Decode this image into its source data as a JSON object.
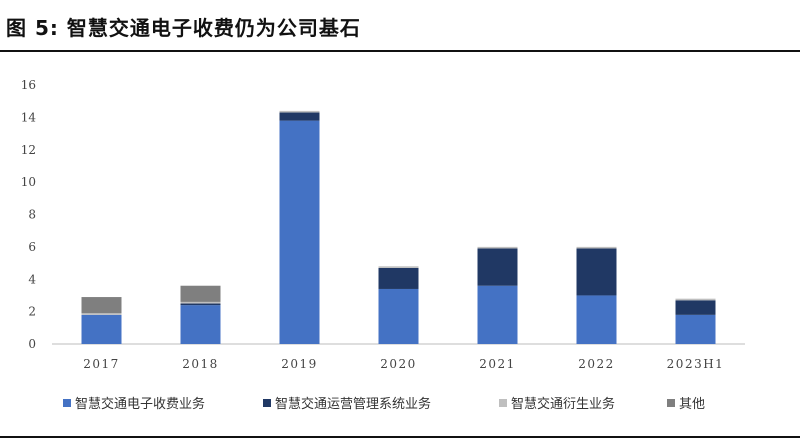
{
  "figure_title": "图 5: 智慧交通电子收费仍为公司基石",
  "chart_data": {
    "type": "bar",
    "stacked": true,
    "categories": [
      "2017",
      "2018",
      "2019",
      "2020",
      "2021",
      "2022",
      "2023H1"
    ],
    "series": [
      {
        "name": "智慧交通电子收费业务",
        "color": "#4472c4",
        "values": [
          1.8,
          2.4,
          13.8,
          3.4,
          3.6,
          3.0,
          1.8
        ]
      },
      {
        "name": "智慧交通运营管理系统业务",
        "color": "#203864",
        "values": [
          0.0,
          0.1,
          0.5,
          1.3,
          2.3,
          2.9,
          0.9
        ]
      },
      {
        "name": "智慧交通衍生业务",
        "color": "#bfbfbf",
        "values": [
          0.1,
          0.1,
          0.1,
          0.1,
          0.1,
          0.1,
          0.1
        ]
      },
      {
        "name": "其他",
        "color": "#7f7f7f",
        "values": [
          1.0,
          1.0,
          0.0,
          0.0,
          0.0,
          0.0,
          0.0
        ]
      }
    ],
    "yticks": [
      0,
      2,
      4,
      6,
      8,
      10,
      12,
      14,
      16
    ],
    "ylim": [
      0,
      16
    ],
    "legend_position": "bottom",
    "grid": false
  }
}
